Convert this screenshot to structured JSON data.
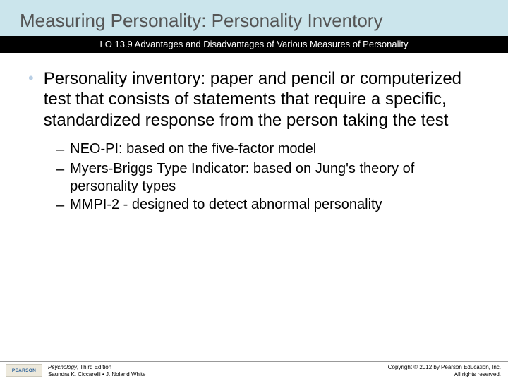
{
  "header": {
    "title": "Measuring Personality: Personality Inventory",
    "lo": "LO 13.9 Advantages and Disadvantages of Various Measures of Personality",
    "band_bg": "#cbe5ec",
    "title_color": "#555555",
    "lo_bg": "#000000",
    "lo_color": "#ffffff"
  },
  "content": {
    "bullet_color": "#b9cfe5",
    "main_bullet": "Personality inventory: paper and pencil or computerized test that consists of statements that require a specific, standardized response from the person taking the test",
    "sub_items": [
      "NEO-PI: based on the five-factor model",
      "Myers-Briggs Type Indicator: based on Jung's theory of personality types",
      "MMPI-2 - designed to detect abnormal personality"
    ]
  },
  "footer": {
    "logo_text": "PEARSON",
    "book_title": "Psychology",
    "book_edition": ", Third Edition",
    "authors": "Saundra K. Ciccarelli • J. Noland White",
    "copyright_line1": "Copyright © 2012 by Pearson Education, Inc.",
    "copyright_line2": "All rights reserved."
  }
}
